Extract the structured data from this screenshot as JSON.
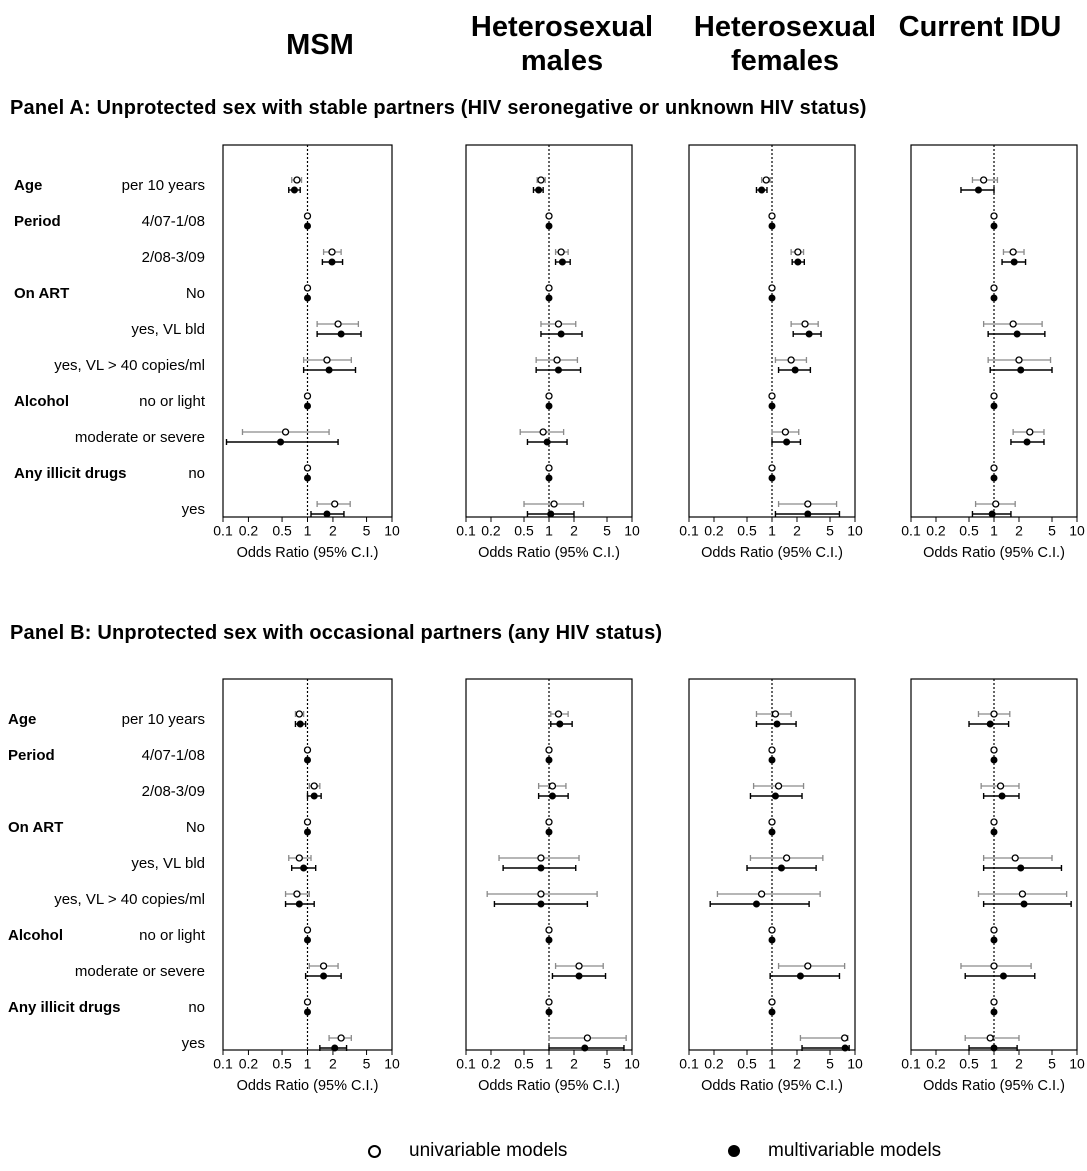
{
  "columns": [
    "MSM",
    "Heterosexual males",
    "Heterosexual females",
    "Current IDU"
  ],
  "panels": [
    {
      "title": "Panel A: Unprotected sex with stable partners (HIV seronegative or unknown HIV status)"
    },
    {
      "title": "Panel B: Unprotected sex with occasional partners (any HIV status)"
    }
  ],
  "row_labels": [
    {
      "group": "Age",
      "level": "per 10 years"
    },
    {
      "group": "Period",
      "level": "4/07-1/08"
    },
    {
      "group": "",
      "level": "2/08-3/09"
    },
    {
      "group": "On ART",
      "level": "No"
    },
    {
      "group": "",
      "level": "yes, VL bld"
    },
    {
      "group": "",
      "level": "yes, VL > 40 copies/ml"
    },
    {
      "group": "Alcohol",
      "level": "no or light"
    },
    {
      "group": "",
      "level": "moderate or severe"
    },
    {
      "group": "Any illicit drugs",
      "level": "no"
    },
    {
      "group": "",
      "level": "yes"
    }
  ],
  "legend": {
    "univariable": "univariable models",
    "multivariable": "multivariable models"
  },
  "chart_data": [
    {
      "type": "forest",
      "panel": "Panel A: Unprotected sex with stable partners (HIV seronegative or unknown HIV status)",
      "x_scale": "log",
      "xlim": [
        0.1,
        10
      ],
      "x_ticks": [
        "0.1",
        "0.2",
        "0.5",
        "1",
        "2",
        "5",
        "10"
      ],
      "xlabel": "Odds Ratio (95% C.I.)",
      "reference_line": 1,
      "facets": [
        {
          "name": "MSM",
          "uni": [
            [
              0.75,
              0.65,
              0.85
            ],
            [
              1,
              1,
              1
            ],
            [
              1.95,
              1.55,
              2.5
            ],
            [
              1,
              1,
              1
            ],
            [
              2.3,
              1.3,
              4.0
            ],
            [
              1.7,
              0.9,
              3.3
            ],
            [
              1,
              1,
              1
            ],
            [
              0.55,
              0.17,
              1.8
            ],
            [
              1,
              1,
              1
            ],
            [
              2.1,
              1.3,
              3.2
            ]
          ],
          "multi": [
            [
              0.7,
              0.6,
              0.82
            ],
            [
              1,
              1,
              1
            ],
            [
              1.95,
              1.5,
              2.6
            ],
            [
              1,
              1,
              1
            ],
            [
              2.5,
              1.3,
              4.3
            ],
            [
              1.8,
              0.9,
              3.7
            ],
            [
              1,
              1,
              1
            ],
            [
              0.48,
              0.11,
              2.3
            ],
            [
              1,
              1,
              1
            ],
            [
              1.7,
              1.1,
              2.7
            ]
          ]
        },
        {
          "name": "Heterosexual males",
          "uni": [
            [
              0.8,
              0.72,
              0.9
            ],
            [
              1,
              1,
              1
            ],
            [
              1.4,
              1.2,
              1.7
            ],
            [
              1,
              1,
              1
            ],
            [
              1.3,
              0.8,
              2.1
            ],
            [
              1.25,
              0.7,
              2.2
            ],
            [
              1,
              1,
              1
            ],
            [
              0.85,
              0.45,
              1.5
            ],
            [
              1,
              1,
              1
            ],
            [
              1.15,
              0.5,
              2.6
            ]
          ],
          "multi": [
            [
              0.75,
              0.65,
              0.85
            ],
            [
              1,
              1,
              1
            ],
            [
              1.45,
              1.2,
              1.8
            ],
            [
              1,
              1,
              1
            ],
            [
              1.4,
              0.8,
              2.5
            ],
            [
              1.3,
              0.7,
              2.4
            ],
            [
              1,
              1,
              1
            ],
            [
              0.95,
              0.55,
              1.65
            ],
            [
              1,
              1,
              1
            ],
            [
              1.05,
              0.55,
              2.0
            ]
          ]
        },
        {
          "name": "Heterosexual females",
          "uni": [
            [
              0.85,
              0.75,
              0.95
            ],
            [
              1,
              1,
              1
            ],
            [
              2.05,
              1.7,
              2.4
            ],
            [
              1,
              1,
              1
            ],
            [
              2.5,
              1.7,
              3.6
            ],
            [
              1.7,
              1.1,
              2.6
            ],
            [
              1,
              1,
              1
            ],
            [
              1.45,
              1.0,
              2.1
            ],
            [
              1,
              1,
              1
            ],
            [
              2.7,
              1.2,
              6.0
            ]
          ],
          "multi": [
            [
              0.75,
              0.65,
              0.87
            ],
            [
              1,
              1,
              1
            ],
            [
              2.05,
              1.75,
              2.45
            ],
            [
              1,
              1,
              1
            ],
            [
              2.8,
              1.8,
              3.9
            ],
            [
              1.9,
              1.2,
              2.9
            ],
            [
              1,
              1,
              1
            ],
            [
              1.5,
              1.0,
              2.2
            ],
            [
              1,
              1,
              1
            ],
            [
              2.7,
              1.1,
              6.5
            ]
          ]
        },
        {
          "name": "Current IDU",
          "uni": [
            [
              0.75,
              0.55,
              1.1
            ],
            [
              1,
              1,
              1
            ],
            [
              1.7,
              1.3,
              2.3
            ],
            [
              1,
              1,
              1
            ],
            [
              1.7,
              0.75,
              3.8
            ],
            [
              2.0,
              0.85,
              4.8
            ],
            [
              1,
              1,
              1
            ],
            [
              2.7,
              1.7,
              4.0
            ],
            [
              1,
              1,
              1
            ],
            [
              1.05,
              0.6,
              1.8
            ]
          ],
          "multi": [
            [
              0.65,
              0.4,
              1.0
            ],
            [
              1,
              1,
              1
            ],
            [
              1.75,
              1.25,
              2.4
            ],
            [
              1,
              1,
              1
            ],
            [
              1.9,
              0.85,
              4.1
            ],
            [
              2.1,
              0.9,
              5.0
            ],
            [
              1,
              1,
              1
            ],
            [
              2.5,
              1.6,
              4.0
            ],
            [
              1,
              1,
              1
            ],
            [
              0.95,
              0.55,
              1.6
            ]
          ]
        }
      ]
    },
    {
      "type": "forest",
      "panel": "Panel B: Unprotected sex with occasional partners (any HIV status)",
      "x_scale": "log",
      "xlim": [
        0.1,
        10
      ],
      "x_ticks": [
        "0.1",
        "0.2",
        "0.5",
        "1",
        "2",
        "5",
        "10"
      ],
      "xlabel": "Odds Ratio (95% C.I.)",
      "reference_line": 1,
      "facets": [
        {
          "name": "MSM",
          "uni": [
            [
              0.8,
              0.72,
              0.9
            ],
            [
              1,
              1,
              1
            ],
            [
              1.2,
              1.05,
              1.4
            ],
            [
              1,
              1,
              1
            ],
            [
              0.8,
              0.6,
              1.1
            ],
            [
              0.75,
              0.55,
              1.05
            ],
            [
              1,
              1,
              1
            ],
            [
              1.55,
              1.05,
              2.3
            ],
            [
              1,
              1,
              1
            ],
            [
              2.5,
              1.8,
              3.3
            ]
          ],
          "multi": [
            [
              0.82,
              0.72,
              0.95
            ],
            [
              1,
              1,
              1
            ],
            [
              1.2,
              1.0,
              1.45
            ],
            [
              1,
              1,
              1
            ],
            [
              0.9,
              0.65,
              1.25
            ],
            [
              0.8,
              0.55,
              1.2
            ],
            [
              1,
              1,
              1
            ],
            [
              1.55,
              0.95,
              2.5
            ],
            [
              1,
              1,
              1
            ],
            [
              2.1,
              1.4,
              2.9
            ]
          ]
        },
        {
          "name": "Heterosexual males",
          "uni": [
            [
              1.3,
              1.05,
              1.7
            ],
            [
              1,
              1,
              1
            ],
            [
              1.1,
              0.75,
              1.6
            ],
            [
              1,
              1,
              1
            ],
            [
              0.8,
              0.25,
              2.3
            ],
            [
              0.8,
              0.18,
              3.8
            ],
            [
              1,
              1,
              1
            ],
            [
              2.3,
              1.2,
              4.5
            ],
            [
              1,
              1,
              1
            ],
            [
              2.9,
              1.0,
              8.5
            ]
          ],
          "multi": [
            [
              1.35,
              1.05,
              1.9
            ],
            [
              1,
              1,
              1
            ],
            [
              1.1,
              0.75,
              1.7
            ],
            [
              1,
              1,
              1
            ],
            [
              0.8,
              0.28,
              2.1
            ],
            [
              0.8,
              0.22,
              2.9
            ],
            [
              1,
              1,
              1
            ],
            [
              2.3,
              1.1,
              4.8
            ],
            [
              1,
              1,
              1
            ],
            [
              2.7,
              1.0,
              8.0
            ]
          ]
        },
        {
          "name": "Heterosexual females",
          "uni": [
            [
              1.1,
              0.65,
              1.7
            ],
            [
              1,
              1,
              1
            ],
            [
              1.2,
              0.6,
              2.4
            ],
            [
              1,
              1,
              1
            ],
            [
              1.5,
              0.55,
              4.1
            ],
            [
              0.75,
              0.22,
              3.8
            ],
            [
              1,
              1,
              1
            ],
            [
              2.7,
              1.2,
              7.5
            ],
            [
              1,
              1,
              1
            ],
            [
              7.5,
              2.2,
              8.2
            ]
          ],
          "multi": [
            [
              1.15,
              0.65,
              1.95
            ],
            [
              1,
              1,
              1
            ],
            [
              1.1,
              0.55,
              2.3
            ],
            [
              1,
              1,
              1
            ],
            [
              1.3,
              0.5,
              3.4
            ],
            [
              0.65,
              0.18,
              2.8
            ],
            [
              1,
              1,
              1
            ],
            [
              2.2,
              0.95,
              6.5
            ],
            [
              1,
              1,
              1
            ],
            [
              7.6,
              2.3,
              8.5
            ]
          ]
        },
        {
          "name": "Current IDU",
          "uni": [
            [
              1.0,
              0.65,
              1.55
            ],
            [
              1,
              1,
              1
            ],
            [
              1.2,
              0.7,
              2.0
            ],
            [
              1,
              1,
              1
            ],
            [
              1.8,
              0.75,
              5.0
            ],
            [
              2.2,
              0.65,
              7.5
            ],
            [
              1,
              1,
              1
            ],
            [
              1.0,
              0.4,
              2.8
            ],
            [
              1,
              1,
              1
            ],
            [
              0.9,
              0.45,
              2.0
            ]
          ],
          "multi": [
            [
              0.9,
              0.5,
              1.5
            ],
            [
              1,
              1,
              1
            ],
            [
              1.25,
              0.75,
              2.0
            ],
            [
              1,
              1,
              1
            ],
            [
              2.1,
              0.75,
              6.5
            ],
            [
              2.3,
              0.75,
              8.5
            ],
            [
              1,
              1,
              1
            ],
            [
              1.3,
              0.45,
              3.1
            ],
            [
              1,
              1,
              1
            ],
            [
              1.0,
              0.5,
              1.9
            ]
          ]
        }
      ]
    }
  ]
}
